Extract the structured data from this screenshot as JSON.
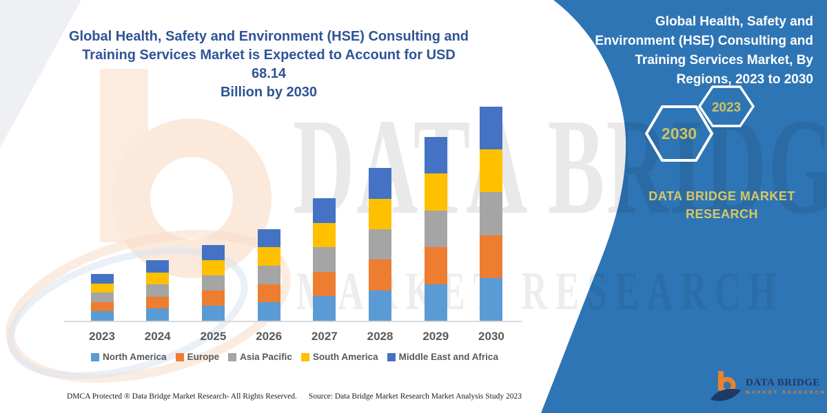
{
  "left_title": {
    "text": "Global Health, Safety and Environment (HSE) Consulting and Training Services Market is Expected to Account for USD 68.14 Billion by 2030",
    "lines": [
      "Global Health, Safety and Environment (HSE) Consulting and",
      "Training Services Market is Expected to Account for USD 68.14",
      "Billion by 2030"
    ],
    "color": "#2F5496"
  },
  "watermark": {
    "line1": "DATA BRIDGE",
    "line2": "MARKET RESEARCH"
  },
  "chart_data": {
    "type": "bar",
    "stacked": true,
    "title": "Global Health, Safety and Environment (HSE) Consulting and Training Services Market is Expected to Account for USD 68.14 Billion by 2030",
    "unit": "USD Billion",
    "categories": [
      "2023",
      "2024",
      "2025",
      "2026",
      "2027",
      "2028",
      "2029",
      "2030"
    ],
    "series": [
      {
        "name": "North America",
        "color": "#5B9BD5",
        "values": [
          2.98,
          3.86,
          4.82,
          5.84,
          7.8,
          9.72,
          11.7,
          13.63
        ]
      },
      {
        "name": "Europe",
        "color": "#ED7D31",
        "values": [
          2.98,
          3.86,
          4.82,
          5.84,
          7.8,
          9.72,
          11.7,
          13.63
        ]
      },
      {
        "name": "Asia Pacific",
        "color": "#A5A5A5",
        "values": [
          2.98,
          3.86,
          4.82,
          5.84,
          7.8,
          9.72,
          11.7,
          13.63
        ]
      },
      {
        "name": "South America",
        "color": "#FFC000",
        "values": [
          2.98,
          3.86,
          4.82,
          5.84,
          7.8,
          9.72,
          11.7,
          13.63
        ]
      },
      {
        "name": "Middle East and Africa",
        "color": "#4472C4",
        "values": [
          2.98,
          3.86,
          4.82,
          5.84,
          7.8,
          9.72,
          11.7,
          13.63
        ]
      }
    ],
    "totals_estimated": [
      14.9,
      19.3,
      24.1,
      29.2,
      39.0,
      48.6,
      58.5,
      68.14
    ],
    "ylim": [
      0,
      70
    ],
    "grid": false,
    "y_axis_visible": false,
    "legend_position": "bottom",
    "xlabel": "",
    "ylabel": ""
  },
  "footer": {
    "left": "DMCA Protected ® Data Bridge Market Research-  All Rights Reserved.",
    "right": "Source: Data Bridge Market Research  Market Analysis Study 2023"
  },
  "panel": {
    "background": "#2E75B5",
    "title": "Global Health, Safety and Environment (HSE) Consulting and Training Services Market, By Regions, 2023 to 2030",
    "title_lines": [
      "Global Health, Safety and",
      "Environment (HSE) Consulting and",
      "Training Services Market, By",
      "Regions, 2023 to 2030"
    ],
    "hexagon_large_label": "2030",
    "hexagon_small_label": "2023",
    "hexagon_label_color": "#CDC45E",
    "brand_line1": "DATA BRIDGE MARKET",
    "brand_line2": "RESEARCH",
    "brand_text_color": "#D9C863",
    "logo_name": "DATA BRIDGE",
    "logo_subtitle": "MARKET RESEARCH"
  }
}
